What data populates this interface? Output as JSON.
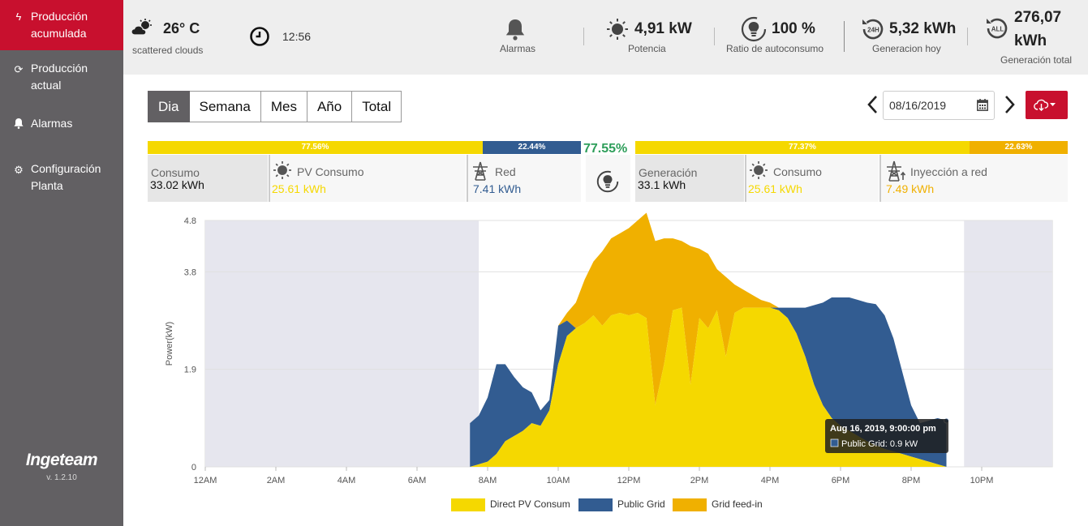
{
  "sidebar": {
    "items": [
      {
        "label": "Producción acumulada",
        "icon": "bolt-icon",
        "active": true
      },
      {
        "label": "Producción actual",
        "icon": "refresh-icon",
        "active": false
      },
      {
        "label": "Alarmas",
        "icon": "bell-icon",
        "active": false
      },
      {
        "label": "Configuración Planta",
        "icon": "gear-icon",
        "active": false
      }
    ],
    "logo": "Ingeteam",
    "version": "v. 1.2.10"
  },
  "topbar": {
    "weather": {
      "temp": "26° C",
      "desc": "scattered clouds",
      "icon": "cloud-sun-icon"
    },
    "time": "12:56",
    "alarms_label": "Alarmas",
    "power": {
      "value": "4,91 kW",
      "label": "Potencia"
    },
    "self_consumption": {
      "value": "100 %",
      "label": "Ratio de autoconsumo"
    },
    "gen_today": {
      "value": "5,32 kWh",
      "label": "Generacion hoy"
    },
    "gen_total": {
      "value_line1": "276,07",
      "value_line2": "kWh",
      "label": "Generación total"
    }
  },
  "period_tabs": [
    "Dia",
    "Semana",
    "Mes",
    "Año",
    "Total"
  ],
  "active_tab": "Dia",
  "date": "08/16/2019",
  "consumption": {
    "bar_pv_pct": "77.56%",
    "bar_grid_pct": "22.44%",
    "ratio": "77.55%",
    "total_label": "Consumo",
    "total_value": "33.02 kWh",
    "pv_label": "PV Consumo",
    "pv_value": "25.61 kWh",
    "grid_label": "Red",
    "grid_value": "7.41 kWh"
  },
  "generation": {
    "bar_cons_pct": "77.37%",
    "bar_inj_pct": "22.63%",
    "total_label": "Generación",
    "total_value": "33.1 kWh",
    "cons_label": "Consumo",
    "cons_value": "25.61 kWh",
    "inj_label": "Inyección a red",
    "inj_value": "7.49 kWh"
  },
  "colors": {
    "brand_red": "#c8102e",
    "sidebar": "#626063",
    "pv_yellow": "#f5d800",
    "grid_blue": "#325c91",
    "feedin_orange": "#f0b000",
    "ratio_green": "#2e9e5a"
  },
  "chart_data": {
    "type": "area",
    "ylabel": "Power(kW)",
    "yticks": [
      "0",
      "1.9",
      "3.8",
      "4.8"
    ],
    "ylim": [
      0,
      4.8
    ],
    "xlim": [
      0,
      24
    ],
    "xticks": [
      "12AM",
      "2AM",
      "4AM",
      "6AM",
      "8AM",
      "10AM",
      "12PM",
      "2PM",
      "4PM",
      "6PM",
      "8PM",
      "10PM"
    ],
    "night_shading": [
      [
        0,
        7.75
      ],
      [
        21.5,
        24
      ]
    ],
    "x_hours": [
      7.5,
      7.75,
      8.0,
      8.25,
      8.5,
      8.75,
      9.0,
      9.25,
      9.5,
      9.75,
      10.0,
      10.25,
      10.5,
      10.75,
      11.0,
      11.25,
      11.5,
      11.75,
      12.0,
      12.25,
      12.5,
      12.75,
      13.0,
      13.25,
      13.5,
      13.75,
      14.0,
      14.25,
      14.5,
      14.75,
      15.0,
      15.25,
      15.5,
      15.75,
      16.0,
      16.25,
      16.5,
      16.75,
      17.0,
      17.25,
      17.5,
      17.75,
      18.0,
      18.25,
      18.5,
      18.75,
      19.0,
      19.25,
      19.5,
      19.75,
      20.0,
      20.25,
      20.5,
      20.75,
      21.0
    ],
    "series": [
      {
        "name": "Direct PV Consum",
        "values": [
          0.0,
          0.05,
          0.1,
          0.25,
          0.5,
          0.6,
          0.7,
          0.85,
          0.8,
          1.1,
          2.0,
          2.55,
          2.7,
          2.8,
          2.95,
          2.75,
          2.95,
          3.0,
          2.95,
          3.0,
          2.9,
          1.2,
          2.0,
          3.05,
          3.1,
          1.6,
          2.9,
          2.7,
          3.05,
          2.15,
          3.0,
          3.1,
          3.1,
          3.1,
          3.1,
          3.05,
          2.9,
          2.6,
          2.15,
          1.6,
          1.2,
          0.95,
          0.8,
          0.7,
          0.6,
          0.5,
          0.42,
          0.35,
          0.3,
          0.25,
          0.2,
          0.15,
          0.1,
          0.05,
          0.0
        ]
      },
      {
        "name": "Public Grid",
        "values": [
          0.85,
          0.95,
          1.25,
          1.75,
          1.5,
          1.15,
          0.85,
          0.6,
          0.3,
          0.2,
          0.75,
          0.3,
          0.0,
          0.0,
          0.0,
          0.0,
          0.0,
          0.0,
          0.0,
          0.0,
          0.0,
          0.0,
          0.0,
          0.0,
          0.0,
          0.0,
          0.0,
          0.0,
          0.0,
          0.0,
          0.0,
          0.0,
          0.0,
          0.0,
          0.0,
          0.05,
          0.2,
          0.5,
          0.95,
          1.55,
          2.0,
          2.35,
          2.5,
          2.6,
          2.65,
          2.7,
          2.75,
          2.6,
          2.2,
          1.6,
          1.0,
          0.7,
          0.8,
          0.9,
          0.9
        ]
      },
      {
        "name": "Grid feed-in",
        "values": [
          0.0,
          0.0,
          0.0,
          0.0,
          0.0,
          0.0,
          0.0,
          0.0,
          0.0,
          0.0,
          0.0,
          0.15,
          0.5,
          0.85,
          1.05,
          1.45,
          1.5,
          1.55,
          1.7,
          1.8,
          2.05,
          3.2,
          2.45,
          1.4,
          1.3,
          2.7,
          1.35,
          1.45,
          0.8,
          1.55,
          0.55,
          0.35,
          0.25,
          0.15,
          0.1,
          0.0,
          0.0,
          0.0,
          0.0,
          0.0,
          0.0,
          0.0,
          0.0,
          0.0,
          0.0,
          0.0,
          0.0,
          0.0,
          0.0,
          0.0,
          0.0,
          0.0,
          0.0,
          0.0,
          0.0
        ]
      }
    ],
    "legend_position": "bottom",
    "tooltip": {
      "title": "Aug 16, 2019, 9:00:00 pm",
      "line": "Public Grid: 0.9 kW"
    }
  }
}
